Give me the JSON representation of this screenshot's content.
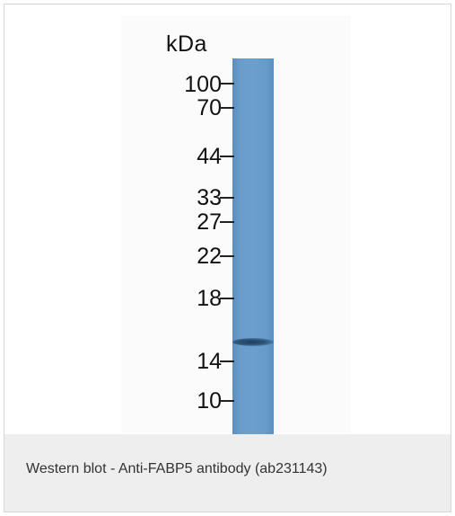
{
  "figure": {
    "unit_label": "kDa",
    "markers": [
      "100",
      "70",
      "44",
      "33",
      "27",
      "22",
      "18",
      "14",
      "10"
    ]
  },
  "caption": "Western blot - Anti-FABP5 antibody (ab231143)",
  "colors": {
    "lane": "#6a9dcb",
    "band": "#2d5576",
    "caption_background": "#eeeeee"
  }
}
